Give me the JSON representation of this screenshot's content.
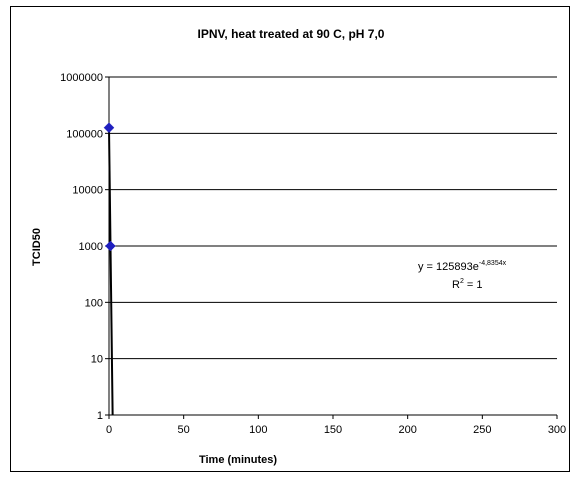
{
  "chart_data": {
    "type": "scatter",
    "title": "IPNV, heat treated at 90 C, pH 7,0",
    "xlabel": "Time (minutes)",
    "ylabel": "TCID50",
    "xlim": [
      0,
      300
    ],
    "ylim": [
      1,
      1000000
    ],
    "y_scale": "log",
    "grid": "horizontal",
    "x_ticks": [
      "0",
      "50",
      "100",
      "150",
      "200",
      "250",
      "300"
    ],
    "y_ticks": [
      "1",
      "10",
      "100",
      "1000",
      "10000",
      "100000",
      "1000000"
    ],
    "series": [
      {
        "points": [
          {
            "x": 0,
            "y": 125893
          },
          {
            "x": 0.95,
            "y": 1000
          }
        ],
        "marker": "diamond",
        "color": "#1f1fbf"
      }
    ],
    "trendline": {
      "type": "exponential",
      "a": 125893,
      "b": -4.8354,
      "color": "#000000"
    },
    "annotations": {
      "equation_prefix": "y = 125893e",
      "equation_exponent": "-4,8354x",
      "r2_prefix": "R",
      "r2_sup": "2",
      "r2_suffix": " = 1"
    }
  }
}
